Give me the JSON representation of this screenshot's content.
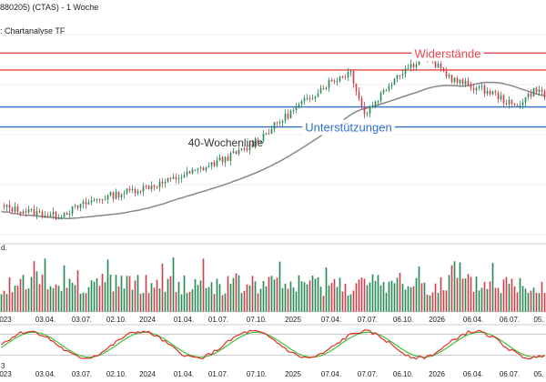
{
  "header": {
    "title": "880205) (CTAS) - 1 Woche",
    "source": ": Chartanalyse TF"
  },
  "colors": {
    "resistance": "#e8474d",
    "support": "#2f6fc8",
    "up": "#2c8a57",
    "down": "#c9424c",
    "ma": "#888888",
    "stoch_k": "#e82a2a",
    "stoch_d": "#3cc43c"
  },
  "chart_data": [
    {
      "type": "candlestick",
      "title": "",
      "annotations": {
        "resistance_label": "Widerstände",
        "support_label": "Unterstützungen",
        "ma_label": "40-Wochenlinie"
      },
      "resistance_levels": [
        0.98,
        0.87
      ],
      "support_levels": [
        0.63,
        0.5
      ],
      "ylim": [
        -0.2,
        1.1
      ],
      "x_ticks": [
        "023",
        "03.04.",
        "03.07.",
        "02.10.",
        "2024",
        "01.04.",
        "01.07.",
        "07.10.",
        "2025",
        "07.04.",
        "07.07.",
        "06.10.",
        "2026",
        "06.04.",
        "06.07.",
        "05."
      ]
    },
    {
      "type": "bar",
      "title": "",
      "ylabel": "d.",
      "ylim": [
        0,
        100
      ]
    },
    {
      "type": "line",
      "title": "",
      "ylabel": "3",
      "reference_lines": [
        20,
        80
      ],
      "ylim": [
        0,
        100
      ]
    }
  ]
}
